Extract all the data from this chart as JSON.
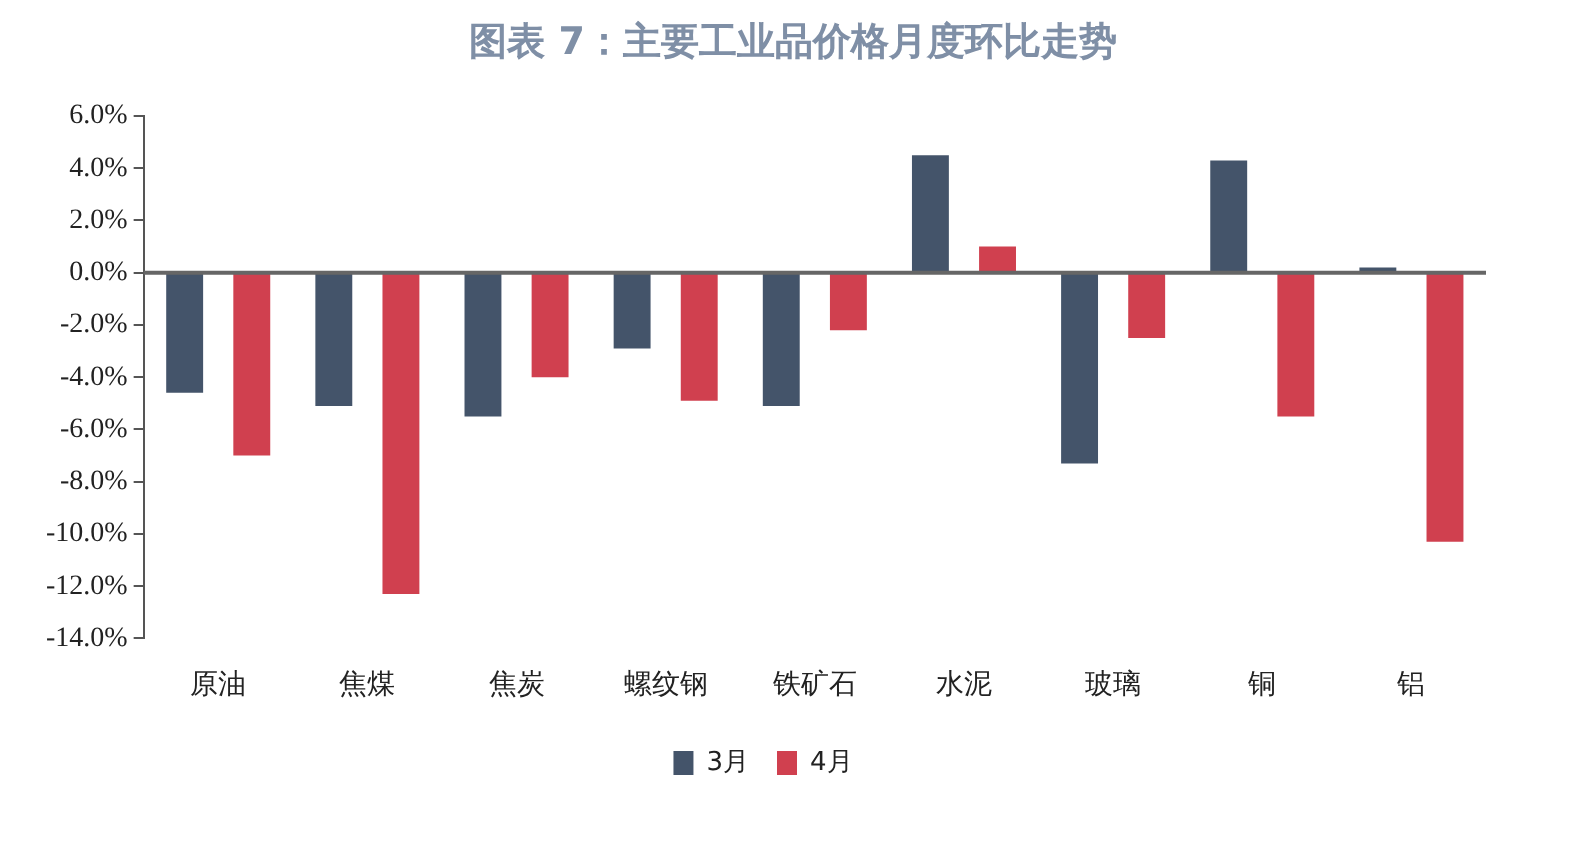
{
  "chart_data": {
    "type": "bar",
    "title": "图表 7：主要工业品价格月度环比走势",
    "categories": [
      "原油",
      "焦煤",
      "焦炭",
      "螺纹钢",
      "铁矿石",
      "水泥",
      "玻璃",
      "铜",
      "铝"
    ],
    "series": [
      {
        "name": "3月",
        "color": "#44546a",
        "values": [
          -4.6,
          -5.1,
          -5.5,
          -2.9,
          -5.1,
          4.5,
          -7.3,
          4.3,
          0.2
        ]
      },
      {
        "name": "4月",
        "color": "#d0404f",
        "values": [
          -7.0,
          -12.3,
          -4.0,
          -4.9,
          -2.2,
          1.0,
          -2.5,
          -5.5,
          -10.3
        ]
      }
    ],
    "ylim": [
      -14,
      6
    ],
    "yticks": [
      {
        "value": -14,
        "label": "-14.0%"
      },
      {
        "value": -12,
        "label": "-12.0%"
      },
      {
        "value": -10,
        "label": "-10.0%"
      },
      {
        "value": -8,
        "label": "-8.0%"
      },
      {
        "value": -6,
        "label": "-6.0%"
      },
      {
        "value": -4,
        "label": "-4.0%"
      },
      {
        "value": -2,
        "label": "-2.0%"
      },
      {
        "value": 0,
        "label": "0.0%"
      },
      {
        "value": 2,
        "label": "2.0%"
      },
      {
        "value": 4,
        "label": "4.0%"
      },
      {
        "value": 6,
        "label": "6.0%"
      }
    ],
    "ref_lines": [
      {
        "axis": "y",
        "value": 0,
        "color": "#666666"
      }
    ],
    "grid": false,
    "legend": "bottom"
  }
}
